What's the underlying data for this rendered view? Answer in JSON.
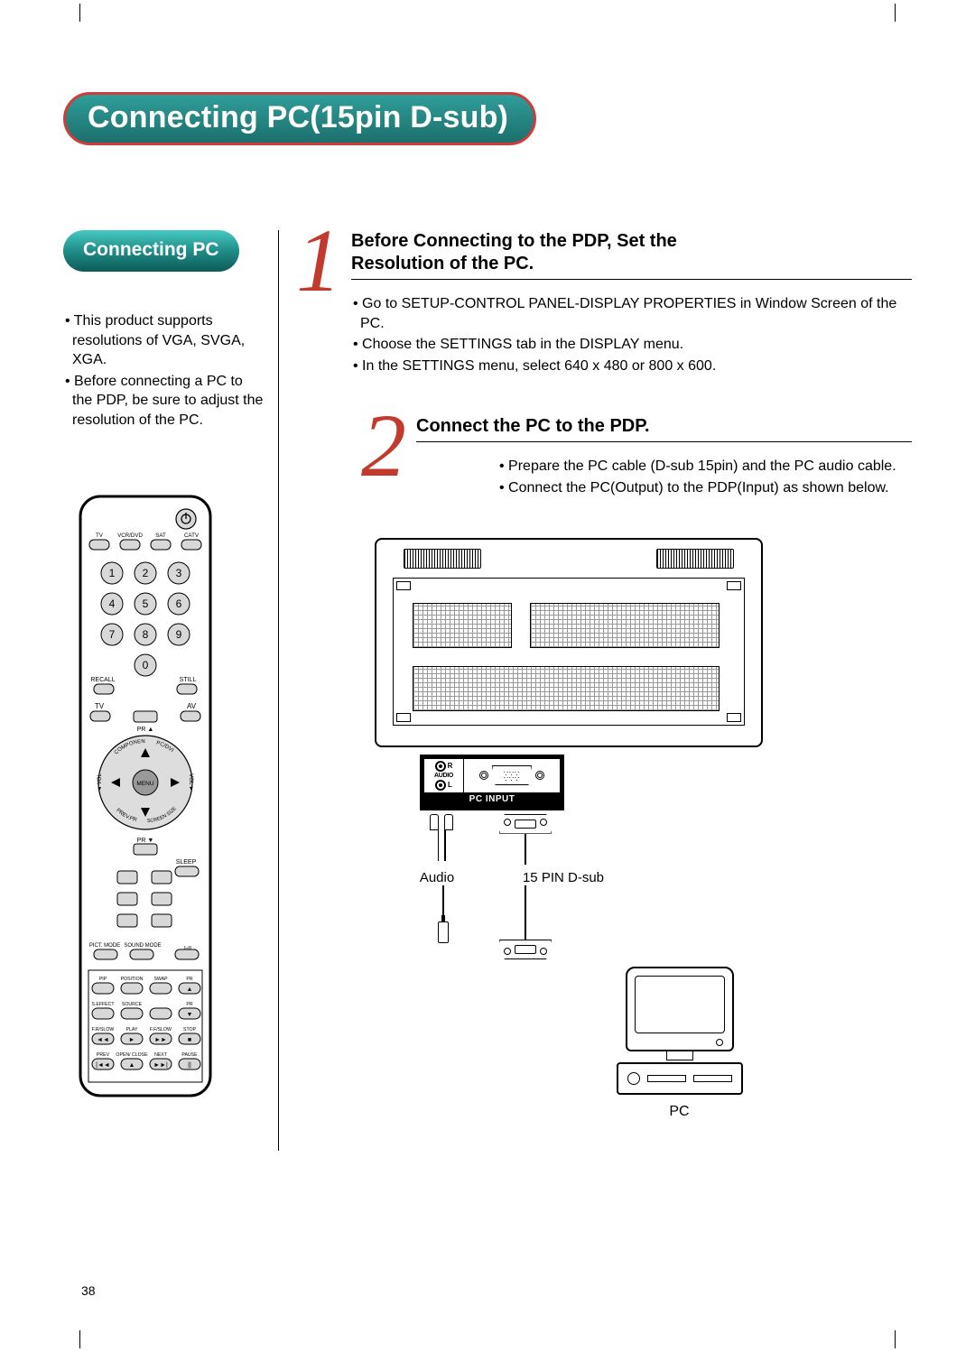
{
  "colors": {
    "title_border": "#d33b3b",
    "title_bg_top": "#2f9e9a",
    "title_bg_bot": "#1c6f6c",
    "subpill_top": "#47c9c3",
    "subpill_mid": "#1f8d88",
    "subpill_bot": "#0e5a56",
    "stepnum": "#c23a2e"
  },
  "title": "Connecting PC(15pin D-sub)",
  "sub_pill": "Connecting PC",
  "left_bullets": [
    "This product supports resolutions of VGA, SVGA, XGA.",
    "Before connecting a PC to the PDP, be sure to adjust the resolution of the PC."
  ],
  "step1": {
    "num": "1",
    "title_l1": "Before Connecting to the PDP, Set the",
    "title_l2": "Resolution of the PC.",
    "items": [
      "Go to SETUP-CONTROL PANEL-DISPLAY PROPERTIES in Window Screen of the PC.",
      "Choose the SETTINGS tab in the DISPLAY menu.",
      "In the SETTINGS menu, select 640 x 480 or 800 x 600."
    ]
  },
  "step2": {
    "num": "2",
    "title": "Connect the PC to the PDP.",
    "items": [
      "Prepare the PC cable (D-sub 15pin) and the PC audio cable.",
      "Connect the PC(Output) to the PDP(Input) as shown below."
    ]
  },
  "diagram": {
    "pc_input_label": "PC INPUT",
    "audio_label": "AUDIO",
    "r": "R",
    "l": "L",
    "cable_audio": "Audio",
    "cable_dsub": "15 PIN D-sub",
    "pc": "PC"
  },
  "remote": {
    "src_labels": [
      "TV",
      "VCR/DVD",
      "SAT",
      "CATV"
    ],
    "recall": "RECALL",
    "still": "STILL",
    "tv": "TV",
    "av": "AV",
    "menu": "MENU",
    "comp": "COMPONENT",
    "pcdvi": "PC/DVI",
    "prevpr": "PREV.PR",
    "screensize": "SCREEN SIZE",
    "pr_up": "PR ▲",
    "pr_dn": "PR ▼",
    "vol": "VOL",
    "sleep": "SLEEP",
    "pict": "PICT. MODE",
    "sound": "SOUND MODE",
    "iii": "I-II",
    "row1": [
      "PIP",
      "POSITION",
      "SWAP",
      "PR"
    ],
    "row2": [
      "S.EFFECT",
      "SOURCE",
      "",
      "PR"
    ],
    "row3": [
      "F.R/SLOW",
      "PLAY",
      "F.F/SLOW",
      "STOP"
    ],
    "row4": [
      "PREV",
      "OPEN/ CLOSE",
      "NEXT",
      "PAUSE"
    ]
  },
  "page_number": "38"
}
